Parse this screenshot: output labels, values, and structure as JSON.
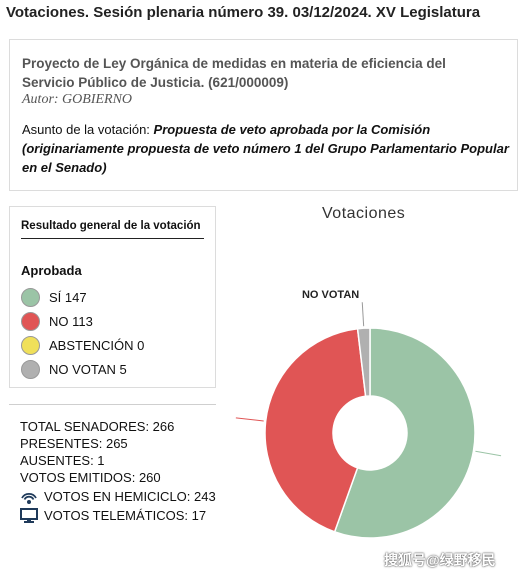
{
  "page": {
    "title": "Votaciones. Sesión plenaria número 39. 03/12/2024. XV  Legislatura"
  },
  "law": {
    "title": "Proyecto de Ley Orgánica de medidas en materia de eficiencia del Servicio Público de Justicia. (621/000009)",
    "author": "Autor: GOBIERNO",
    "subject_label": "Asunto de la votación: ",
    "subject_text": "Propuesta de veto aprobada por la Comisión (originariamente propuesta de veto número 1 del Grupo Parlamentario Popular en el Senado)"
  },
  "result": {
    "heading": "Resultado general de la votación",
    "status": "Aprobada",
    "legend": [
      {
        "label": "SÍ 147",
        "color": "#9bc4a6"
      },
      {
        "label": "NO 113",
        "color": "#e05555"
      },
      {
        "label": "ABSTENCIÓN 0",
        "color": "#f0e05a"
      },
      {
        "label": "NO VOTAN 5",
        "color": "#b0b0b0"
      }
    ]
  },
  "stats": {
    "total": "TOTAL SENADORES: 266",
    "presentes": "PRESENTES: 265",
    "ausentes": "AUSENTES: 1",
    "emitidos": "VOTOS EMITIDOS: 260",
    "hemiciclo": "VOTOS EN HEMICICLO: 243",
    "telematicos": "VOTOS TELEMÁTICOS: 17",
    "hemiciclo_icon": "wifi-signal-icon",
    "telematicos_icon": "monitor-icon"
  },
  "chart_data": {
    "type": "pie",
    "title": "Votaciones",
    "series": [
      {
        "name": "SÍ",
        "value": 147,
        "color": "#9bc4a6"
      },
      {
        "name": "NO",
        "value": 113,
        "color": "#e05555"
      },
      {
        "name": "ABSTENCIÓN",
        "value": 0,
        "color": "#f0e05a"
      },
      {
        "name": "NO VOTAN",
        "value": 5,
        "color": "#b0b0b0"
      }
    ],
    "visible_labels": [
      "NO VOTAN"
    ],
    "donut": true
  },
  "watermark": "搜狐号@绿野移民"
}
